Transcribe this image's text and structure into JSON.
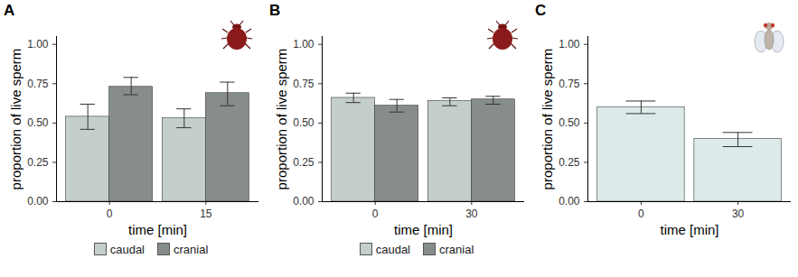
{
  "chart_data": [
    {
      "type": "bar",
      "title": "A",
      "xlabel": "time [min]",
      "ylabel": "proportion of live sperm",
      "categories": [
        0,
        15
      ],
      "series": [
        {
          "name": "caudal",
          "color": "#c4cfcd",
          "values": [
            0.54,
            0.53
          ],
          "error_low": [
            0.46,
            0.47
          ],
          "error_high": [
            0.62,
            0.59
          ]
        },
        {
          "name": "cranial",
          "color": "#878c8c",
          "values": [
            0.73,
            0.69
          ],
          "error_low": [
            0.68,
            0.61
          ],
          "error_high": [
            0.79,
            0.76
          ]
        }
      ],
      "ylim": [
        0,
        1.05
      ],
      "yticks": [
        {
          "value": 0,
          "label": "0.00"
        },
        {
          "value": 0.25,
          "label": "0.25"
        },
        {
          "value": 0.5,
          "label": "0.50"
        },
        {
          "value": 0.75,
          "label": "0.75"
        },
        {
          "value": 1,
          "label": "1.00"
        }
      ],
      "grid": false,
      "legend": "bottom"
    },
    {
      "type": "bar",
      "title": "B",
      "xlabel": "time [min]",
      "ylabel": "proportion of live sperm",
      "categories": [
        0,
        30
      ],
      "series": [
        {
          "name": "caudal",
          "color": "#c4cfcd",
          "values": [
            0.66,
            0.64
          ],
          "error_low": [
            0.63,
            0.61
          ],
          "error_high": [
            0.69,
            0.66
          ]
        },
        {
          "name": "cranial",
          "color": "#878c8c",
          "values": [
            0.61,
            0.65
          ],
          "error_low": [
            0.57,
            0.62
          ],
          "error_high": [
            0.65,
            0.67
          ]
        }
      ],
      "ylim": [
        0,
        1.05
      ],
      "yticks": [
        {
          "value": 0,
          "label": "0.00"
        },
        {
          "value": 0.25,
          "label": "0.25"
        },
        {
          "value": 0.5,
          "label": "0.50"
        },
        {
          "value": 0.75,
          "label": "0.75"
        },
        {
          "value": 1,
          "label": "1.00"
        }
      ],
      "grid": false,
      "legend": "bottom"
    },
    {
      "type": "bar",
      "title": "C",
      "xlabel": "time [min]",
      "ylabel": "proportion of live sperm",
      "categories": [
        0,
        30
      ],
      "values": [
        0.6,
        0.4
      ],
      "error_low": [
        0.56,
        0.35
      ],
      "error_high": [
        0.64,
        0.44
      ],
      "color": "#dcebea",
      "ylim": [
        0,
        1.05
      ],
      "yticks": [
        {
          "value": 0,
          "label": "0.00"
        },
        {
          "value": 0.25,
          "label": "0.25"
        },
        {
          "value": 0.5,
          "label": "0.50"
        },
        {
          "value": 0.75,
          "label": "0.75"
        },
        {
          "value": 1,
          "label": "1.00"
        }
      ],
      "grid": false
    }
  ]
}
